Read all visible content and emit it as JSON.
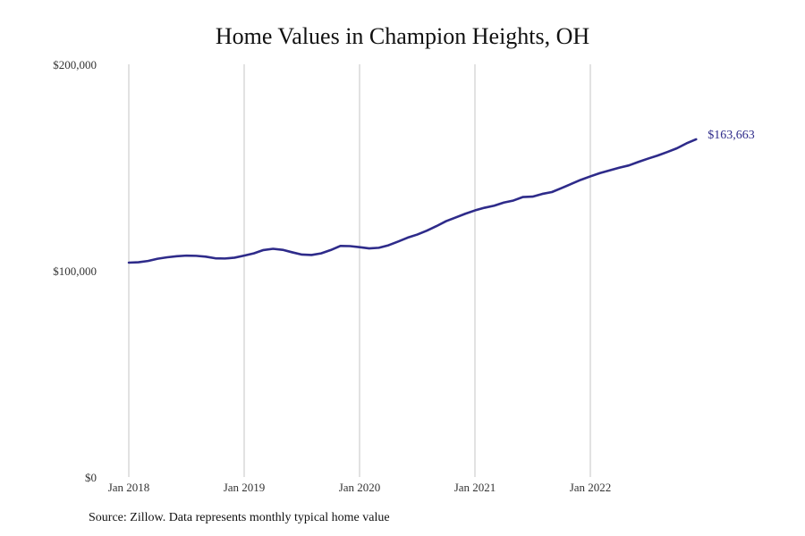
{
  "chart_data": {
    "type": "line",
    "title": "Home Values in Champion Heights, OH",
    "xlabel": "",
    "ylabel": "",
    "ylim": [
      0,
      200000
    ],
    "y_ticks": [
      {
        "value": 0,
        "label": "$0"
      },
      {
        "value": 100000,
        "label": "$100,000"
      },
      {
        "value": 200000,
        "label": "$200,000"
      }
    ],
    "x_ticks": [
      {
        "value": "2018-01",
        "label": "Jan 2018"
      },
      {
        "value": "2019-01",
        "label": "Jan 2019"
      },
      {
        "value": "2020-01",
        "label": "Jan 2020"
      },
      {
        "value": "2021-01",
        "label": "Jan 2021"
      },
      {
        "value": "2022-01",
        "label": "Jan 2022"
      }
    ],
    "grid": {
      "vertical": true,
      "horizontal": false
    },
    "line_color": "#2e2b8a",
    "end_label": "$163,663",
    "series": [
      {
        "x": [
          "2018-01",
          "2018-02",
          "2018-03",
          "2018-04",
          "2018-05",
          "2018-06",
          "2018-07",
          "2018-08",
          "2018-09",
          "2018-10",
          "2018-11",
          "2018-12",
          "2019-01",
          "2019-02",
          "2019-03",
          "2019-04",
          "2019-05",
          "2019-06",
          "2019-07",
          "2019-08",
          "2019-09",
          "2019-10",
          "2019-11",
          "2019-12",
          "2020-01",
          "2020-02",
          "2020-03",
          "2020-04",
          "2020-05",
          "2020-06",
          "2020-07",
          "2020-08",
          "2020-09",
          "2020-10",
          "2020-11",
          "2020-12",
          "2021-01",
          "2021-02",
          "2021-03",
          "2021-04",
          "2021-05",
          "2021-06",
          "2021-07",
          "2021-08",
          "2021-09",
          "2021-10",
          "2021-11",
          "2021-12",
          "2022-01",
          "2022-02",
          "2022-03",
          "2022-04",
          "2022-05",
          "2022-06",
          "2022-07",
          "2022-08",
          "2022-09",
          "2022-10",
          "2022-11",
          "2022-12"
        ],
        "values": [
          103900,
          104100,
          104700,
          105800,
          106500,
          107000,
          107300,
          107200,
          106800,
          106000,
          105900,
          106300,
          107300,
          108400,
          110000,
          110600,
          110100,
          108900,
          107800,
          107600,
          108400,
          110000,
          112000,
          111900,
          111400,
          110800,
          111100,
          112300,
          114100,
          116000,
          117500,
          119400,
          121600,
          124000,
          125800,
          127600,
          129200,
          130500,
          131500,
          133000,
          134000,
          135700,
          135900,
          137200,
          138100,
          140000,
          142000,
          144000,
          145700,
          147300,
          148600,
          149900,
          151000,
          152700,
          154300,
          155800,
          157500,
          159300,
          161700,
          163663
        ]
      }
    ]
  },
  "source_note": "Source: Zillow. Data represents monthly typical home value"
}
